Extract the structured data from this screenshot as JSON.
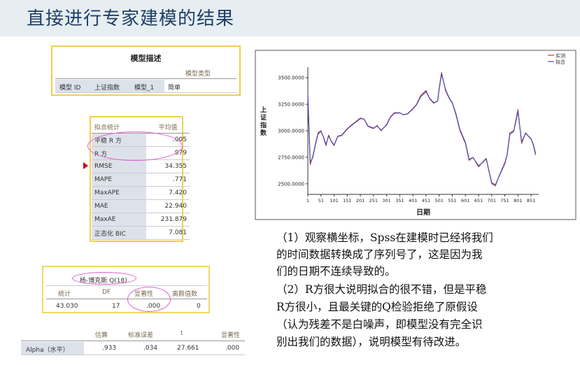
{
  "slide": {
    "title": "直接进行专家建模的结果"
  },
  "model_desc": {
    "title": "模型描述",
    "subheader": "模型类型",
    "row": {
      "id_label": "模型 ID",
      "series": "上证指数",
      "model_name": "模型_1",
      "type": "简单"
    }
  },
  "fit_stats": {
    "headers": {
      "stat": "拟合统计",
      "mean": "平均值"
    },
    "rows": [
      {
        "label": "平稳 R 方",
        "value": ".005"
      },
      {
        "label": "R 方",
        "value": ".979"
      },
      {
        "label": "RMSE",
        "value": "34.355"
      },
      {
        "label": "MAPE",
        "value": ".771"
      },
      {
        "label": "MaxAPE",
        "value": "7.420"
      },
      {
        "label": "MAE",
        "value": "22.940"
      },
      {
        "label": "MaxAE",
        "value": "231.879"
      },
      {
        "label": "正态化 BIC",
        "value": "7.081"
      }
    ]
  },
  "ljung_box": {
    "title": "杨-博克斯 Q(18)",
    "headers": {
      "stat": "统计",
      "df": "DF",
      "sig": "显著性",
      "outliers": "离群值数"
    },
    "values": {
      "stat": "43.030",
      "df": "17",
      "sig": ".000",
      "outliers": "0"
    }
  },
  "params": {
    "headers": {
      "est": "估算",
      "se": "标准误差",
      "t": "t",
      "sig": "显著性"
    },
    "row": {
      "label": "Alpha（水平）",
      "est": ".933",
      "se": ".034",
      "t": "27.661",
      "sig": ".000"
    }
  },
  "chart_data": {
    "type": "line",
    "title": "",
    "xlabel": "日期",
    "ylabel": "上证指数",
    "xlim": [
      1,
      880
    ],
    "ylim": [
      2400,
      3600
    ],
    "x_ticks": [
      1,
      51,
      101,
      151,
      201,
      251,
      301,
      351,
      401,
      451,
      501,
      551,
      601,
      651,
      701,
      751,
      801,
      851
    ],
    "y_ticks": [
      "2500.0000",
      "2750.0000",
      "3000.0000",
      "3250.0000",
      "3500.0000"
    ],
    "y_tick_values": [
      2500,
      2750,
      3000,
      3250,
      3500
    ],
    "legend_position": "top-right",
    "series": [
      {
        "name": "实测",
        "color": "#c0392b",
        "x": [
          1,
          10,
          20,
          30,
          40,
          51,
          60,
          70,
          80,
          90,
          101,
          115,
          130,
          151,
          170,
          185,
          201,
          215,
          230,
          251,
          265,
          280,
          301,
          315,
          330,
          351,
          365,
          380,
          401,
          415,
          430,
          451,
          465,
          480,
          495,
          501,
          510,
          525,
          540,
          551,
          565,
          580,
          601,
          615,
          630,
          651,
          665,
          680,
          701,
          715,
          730,
          751,
          760,
          770,
          785,
          801,
          815,
          830,
          851,
          860,
          868
        ],
        "y": [
          3340,
          2680,
          2760,
          2880,
          2980,
          3000,
          2940,
          2860,
          2960,
          2900,
          2860,
          2950,
          2960,
          3020,
          3060,
          3090,
          3120,
          3110,
          3040,
          3020,
          3050,
          3000,
          3060,
          3130,
          3170,
          3170,
          3150,
          3160,
          3210,
          3250,
          3330,
          3380,
          3300,
          3260,
          3280,
          3400,
          3550,
          3380,
          3300,
          3260,
          3150,
          3000,
          2880,
          2720,
          2750,
          2660,
          2700,
          2740,
          2500,
          2480,
          2580,
          2700,
          2780,
          2980,
          3000,
          3200,
          2880,
          2980,
          2920,
          2860,
          2770
        ]
      },
      {
        "name": "拟合",
        "color": "#4b4bb3",
        "x": [
          1,
          10,
          20,
          30,
          40,
          51,
          60,
          70,
          80,
          90,
          101,
          115,
          130,
          151,
          170,
          185,
          201,
          215,
          230,
          251,
          265,
          280,
          301,
          315,
          330,
          351,
          365,
          380,
          401,
          415,
          430,
          451,
          465,
          480,
          495,
          501,
          510,
          525,
          540,
          551,
          565,
          580,
          601,
          615,
          630,
          651,
          665,
          680,
          701,
          715,
          730,
          751,
          760,
          770,
          785,
          801,
          815,
          830,
          851,
          860,
          868
        ],
        "y": [
          3330,
          2700,
          2750,
          2870,
          2970,
          2995,
          2945,
          2870,
          2950,
          2905,
          2865,
          2945,
          2955,
          3015,
          3055,
          3085,
          3115,
          3110,
          3045,
          3025,
          3045,
          3005,
          3055,
          3125,
          3165,
          3168,
          3152,
          3158,
          3205,
          3245,
          3320,
          3370,
          3305,
          3265,
          3278,
          3390,
          3535,
          3390,
          3305,
          3265,
          3160,
          3010,
          2890,
          2730,
          2748,
          2670,
          2698,
          2735,
          2510,
          2490,
          2575,
          2690,
          2775,
          2965,
          2995,
          3180,
          2895,
          2975,
          2925,
          2868,
          2785
        ]
      }
    ]
  },
  "notes": {
    "p1": [
      "（1）观察横坐标，Spss在建模时已经将我们",
      "的时间数据转换成了序列号了，这是因为我",
      "们的日期不连续导致的。"
    ],
    "p2": [
      "（2）R方很大说明拟合的很不错，但是平稳",
      "R方很小，且最关键的Q检验拒绝了原假设",
      "（认为残差不是白噪声，即模型没有完全识",
      "别出我们的数据），说明模型有待改进。"
    ]
  }
}
